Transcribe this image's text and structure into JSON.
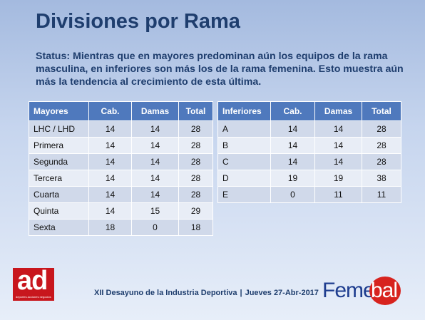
{
  "title": "Divisiones por Rama",
  "status": "Status: Mientras que en mayores predominan aún los equipos de la rama masculina, en inferiores son más los de la rama femenina. Esto muestra aún más la tendencia al crecimiento de esta última.",
  "mayores": {
    "headers": [
      "Mayores",
      "Cab.",
      "Damas",
      "Total"
    ],
    "rows": [
      [
        "LHC / LHD",
        "14",
        "14",
        "28"
      ],
      [
        "Primera",
        "14",
        "14",
        "28"
      ],
      [
        "Segunda",
        "14",
        "14",
        "28"
      ],
      [
        "Tercera",
        "14",
        "14",
        "28"
      ],
      [
        "Cuarta",
        "14",
        "14",
        "28"
      ],
      [
        "Quinta",
        "14",
        "15",
        "29"
      ],
      [
        "Sexta",
        "18",
        "0",
        "18"
      ]
    ]
  },
  "inferiores": {
    "headers": [
      "Inferiores",
      "Cab.",
      "Damas",
      "Total"
    ],
    "rows": [
      [
        "A",
        "14",
        "14",
        "28"
      ],
      [
        "B",
        "14",
        "14",
        "28"
      ],
      [
        "C",
        "14",
        "14",
        "28"
      ],
      [
        "D",
        "19",
        "19",
        "38"
      ],
      [
        "E",
        "0",
        "11",
        "11"
      ]
    ]
  },
  "footer": {
    "event": "XII Desayuno de la Industria Deportiva",
    "separator": "|",
    "date": "Jueves 27-Abr-2017"
  },
  "logos": {
    "ad_letters": "ad",
    "ad_tagline": "deportes acciones negocios",
    "femebal_fe": "Feme",
    "femebal_ball": "bal",
    "femebal_blue": "#1e3d8f",
    "femebal_red": "#d7231e",
    "ad_red": "#c8161d"
  },
  "colors": {
    "title": "#1f3e6e",
    "table_header": "#4f79bd",
    "row_odd": "#d0d9ea",
    "row_even": "#e8edf6"
  }
}
